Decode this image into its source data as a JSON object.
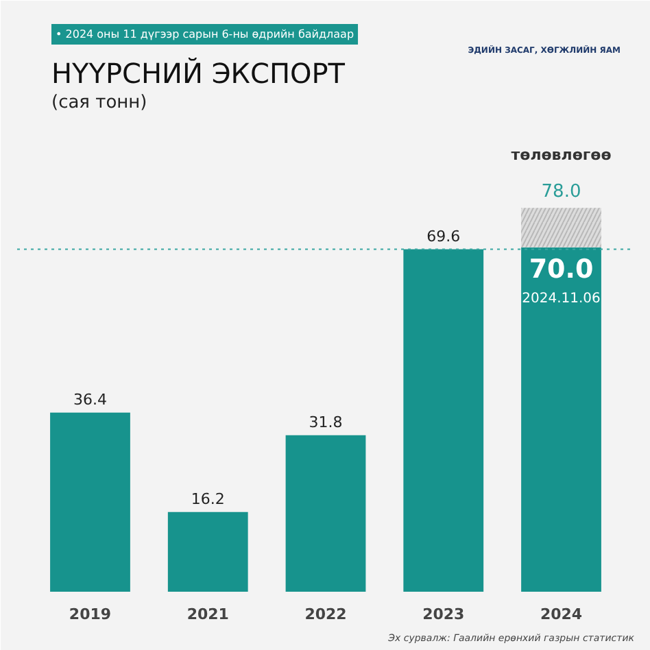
{
  "chart_data": {
    "type": "bar",
    "title": "НҮҮРСНИЙ ЭКСПОРТ",
    "subtitle": "(сая тонн)",
    "categories": [
      "2019",
      "2021",
      "2022",
      "2023",
      "2024"
    ],
    "stacked": true,
    "series": [
      {
        "color": "#17938d",
        "values": [
          36.4,
          16.2,
          31.8,
          69.6,
          70.0
        ],
        "value_labels": [
          "36.4",
          "16.2",
          "31.8",
          "69.6",
          "70.0"
        ]
      },
      {
        "name": "төлөвлөгөө",
        "color": "#dcdcdc",
        "values": [
          null,
          null,
          null,
          null,
          8.0
        ]
      }
    ],
    "totals": [
      null,
      null,
      null,
      null,
      "78.0"
    ],
    "ref_lines": [
      {
        "axis": "y",
        "value": 69.6,
        "color": "#3aa7a2",
        "line_style": "dotted"
      }
    ],
    "annotations": [
      "• 2024 оны 11 дүгээр сарын 6-ны өдрийн байдлаар",
      "ЭДИЙН ЗАСАГ, ХӨГЖЛИЙН ЯАМ",
      "Эх сурвалж: Гаалийн ерөнхий газрын статистик",
      "2024.11.06"
    ],
    "grid": false
  }
}
